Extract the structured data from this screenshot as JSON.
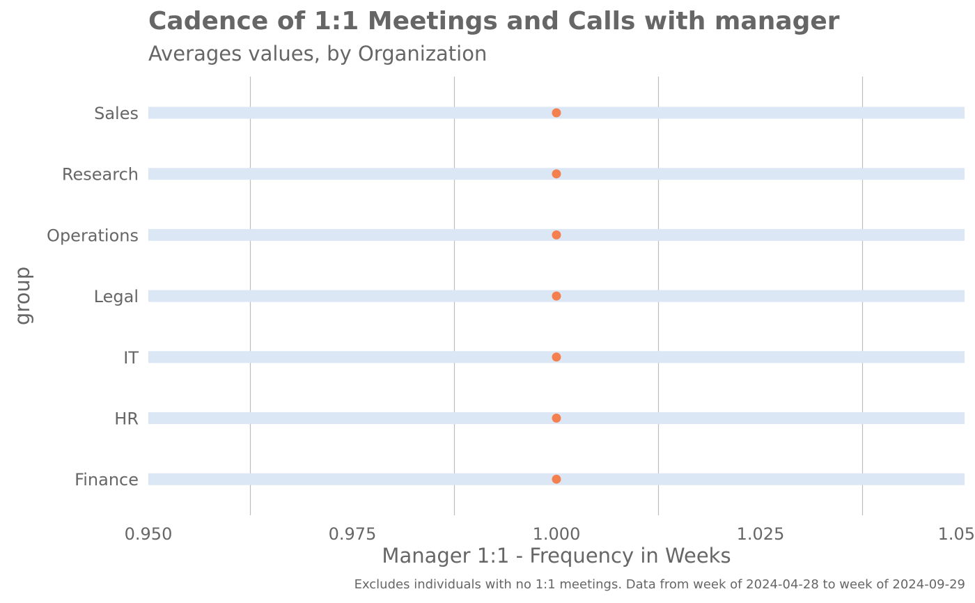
{
  "chart_data": {
    "type": "scatter",
    "title": "Cadence of 1:1 Meetings and Calls with manager",
    "subtitle": "Averages values, by  Organization",
    "xlabel": "Manager 1:1 -  Frequency in Weeks",
    "ylabel": "group",
    "caption": "Excludes individuals with no 1:1 meetings.  Data from week of 2024-04-28 to week of 2024-09-29",
    "categories": [
      "Sales",
      "Research",
      "Operations",
      "Legal",
      "IT",
      "HR",
      "Finance"
    ],
    "values": [
      1.0,
      1.0,
      1.0,
      1.0,
      1.0,
      1.0,
      1.0
    ],
    "range_bars": {
      "from": 0.95,
      "to": 1.05
    },
    "xlim": [
      0.95,
      1.05
    ],
    "xticks": [
      0.95,
      0.975,
      1.0,
      1.025,
      1.05
    ],
    "xtick_labels": [
      "0.950",
      "0.975",
      "1.000",
      "1.025",
      "1.05"
    ],
    "grid": "vertical",
    "legend": "none",
    "colors": {
      "point": "#F4804F",
      "bar": "#DCE7F6",
      "grid": "#BDBDBD",
      "text": "#666666"
    }
  }
}
